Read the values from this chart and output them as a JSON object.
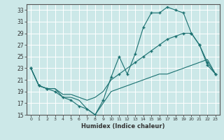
{
  "xlabel": "Humidex (Indice chaleur)",
  "bg_color": "#cce8e8",
  "grid_color": "#ffffff",
  "line_color": "#1a7070",
  "xlim": [
    -0.5,
    23.5
  ],
  "ylim": [
    15,
    34
  ],
  "xticks": [
    0,
    1,
    2,
    3,
    4,
    5,
    6,
    7,
    8,
    9,
    10,
    11,
    12,
    13,
    14,
    15,
    16,
    17,
    18,
    19,
    20,
    21,
    22,
    23
  ],
  "yticks": [
    15,
    17,
    19,
    21,
    23,
    25,
    27,
    29,
    31,
    33
  ],
  "series1_x": [
    0,
    1,
    2,
    3,
    4,
    5,
    6,
    7,
    8,
    9,
    10,
    11,
    12,
    13,
    14,
    15,
    16,
    17,
    18,
    19,
    20,
    21,
    22,
    23
  ],
  "series1_y": [
    23,
    20,
    19.5,
    19,
    18,
    17.5,
    16.5,
    16,
    15,
    17.5,
    21.5,
    25,
    22,
    25.5,
    30,
    32.5,
    32.5,
    33.5,
    33,
    32.5,
    29,
    27,
    23.5,
    22
  ],
  "series1_markers_x": [
    0,
    1,
    2,
    3,
    4,
    5,
    6,
    7,
    8,
    9,
    10,
    11,
    12,
    13,
    14,
    15,
    16,
    17,
    18,
    19,
    20,
    21,
    22,
    23
  ],
  "series1_markers_y": [
    23,
    20,
    19.5,
    19,
    18,
    17.5,
    16.5,
    16,
    15,
    17.5,
    21.5,
    25,
    22,
    25.5,
    30,
    32.5,
    32.5,
    33.5,
    33,
    32.5,
    29,
    27,
    23.5,
    22
  ],
  "series2_x": [
    0,
    1,
    2,
    3,
    4,
    5,
    6,
    7,
    8,
    9,
    10,
    11,
    12,
    13,
    14,
    15,
    16,
    17,
    18,
    19,
    20,
    21,
    22,
    23
  ],
  "series2_y": [
    23,
    20,
    19.5,
    19.5,
    18.5,
    18.5,
    18,
    17.5,
    18,
    19,
    21,
    22,
    23,
    24,
    25,
    26,
    27,
    28,
    28.5,
    29,
    29,
    27,
    24,
    22
  ],
  "series2_markers_x": [
    0,
    1,
    2,
    11,
    13,
    14,
    15,
    16,
    17,
    18,
    19,
    20,
    21,
    22,
    23
  ],
  "series2_markers_y": [
    23,
    20,
    19.5,
    22,
    24,
    25,
    26,
    27,
    28,
    28.5,
    29,
    29,
    27,
    24,
    22
  ],
  "series3_x": [
    0,
    1,
    2,
    3,
    4,
    5,
    6,
    7,
    8,
    9,
    10,
    11,
    12,
    13,
    14,
    15,
    16,
    17,
    18,
    19,
    20,
    21,
    22,
    23
  ],
  "series3_y": [
    23,
    20,
    19.5,
    19.5,
    18,
    18,
    17.5,
    16,
    15,
    17,
    19,
    19.5,
    20,
    20.5,
    21,
    21.5,
    22,
    22,
    22.5,
    23,
    23.5,
    24,
    24.5,
    22
  ]
}
